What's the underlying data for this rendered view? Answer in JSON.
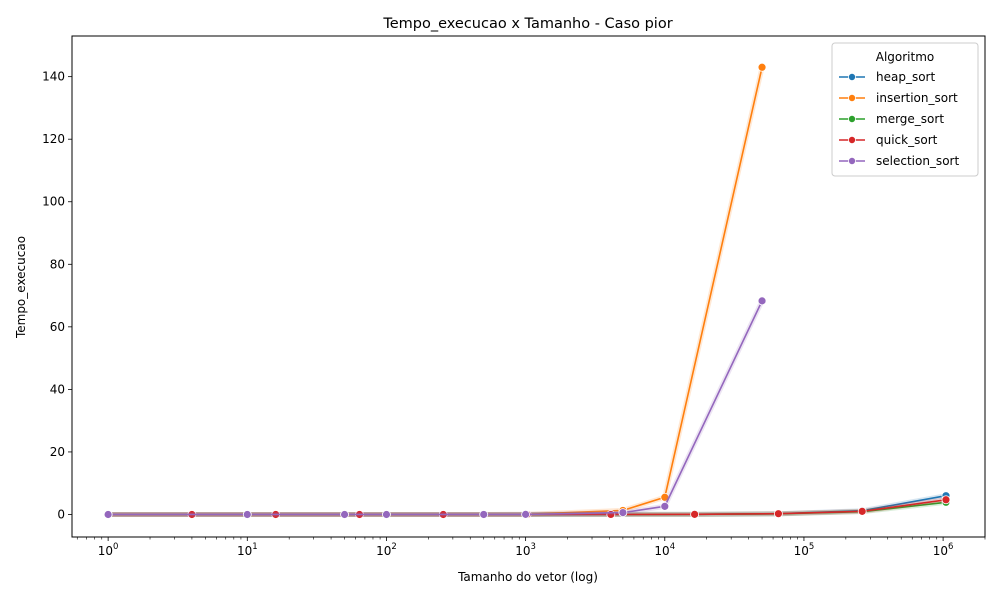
{
  "chart_data": {
    "type": "line",
    "title": "Tempo_execucao x Tamanho - Caso pior",
    "xlabel": "Tamanho do vetor (log)",
    "ylabel": "Tempo_execucao",
    "xscale": "log",
    "xlim": [
      0.55,
      2000000
    ],
    "ylim": [
      -7.2,
      153
    ],
    "x_ticks": [
      {
        "base": "10",
        "exp": "0",
        "value": 1
      },
      {
        "base": "10",
        "exp": "1",
        "value": 10
      },
      {
        "base": "10",
        "exp": "2",
        "value": 100
      },
      {
        "base": "10",
        "exp": "3",
        "value": 1000
      },
      {
        "base": "10",
        "exp": "4",
        "value": 10000
      },
      {
        "base": "10",
        "exp": "5",
        "value": 100000
      },
      {
        "base": "10",
        "exp": "6",
        "value": 1000000
      }
    ],
    "y_ticks": [
      0,
      20,
      40,
      60,
      80,
      100,
      120,
      140
    ],
    "legend": {
      "title": "Algoritmo",
      "position": "top-right"
    },
    "series": [
      {
        "name": "heap_sort",
        "color": "#1f77b4",
        "x": [
          1,
          4,
          16,
          64,
          256,
          1024,
          4096,
          16384,
          65536,
          262144,
          1048576
        ],
        "y": [
          0,
          0,
          0,
          0,
          0,
          0.002,
          0.01,
          0.05,
          0.25,
          1.2,
          6.0
        ]
      },
      {
        "name": "insertion_sort",
        "color": "#ff7f0e",
        "x": [
          1,
          10,
          50,
          100,
          500,
          1000,
          5000,
          10000,
          50000
        ],
        "y": [
          0,
          0,
          0,
          0,
          0.01,
          0.05,
          1.3,
          5.5,
          143
        ]
      },
      {
        "name": "merge_sort",
        "color": "#2ca02c",
        "x": [
          1,
          4,
          16,
          64,
          256,
          1024,
          4096,
          16384,
          65536,
          262144,
          1048576
        ],
        "y": [
          0,
          0,
          0,
          0,
          0,
          0.001,
          0.008,
          0.04,
          0.2,
          0.9,
          3.9
        ]
      },
      {
        "name": "quick_sort",
        "color": "#d62728",
        "x": [
          1,
          4,
          16,
          64,
          256,
          1024,
          4096,
          16384,
          65536,
          262144,
          1048576
        ],
        "y": [
          0,
          0,
          0,
          0,
          0,
          0.001,
          0.008,
          0.04,
          0.25,
          1.0,
          4.7
        ]
      },
      {
        "name": "selection_sort",
        "color": "#9467bd",
        "x": [
          1,
          10,
          50,
          100,
          500,
          1000,
          5000,
          10000,
          50000
        ],
        "y": [
          0,
          0,
          0,
          0,
          0.005,
          0.03,
          0.6,
          2.6,
          68.3
        ]
      }
    ]
  }
}
